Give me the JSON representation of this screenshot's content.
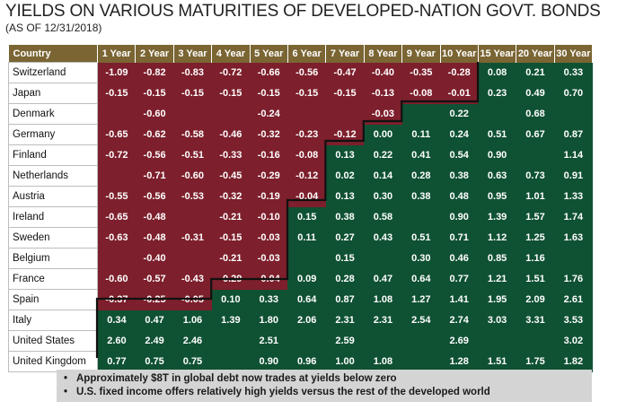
{
  "title": "YIELDS ON VARIOUS MATURITIES OF DEVELOPED-NATION GOVT. BONDS",
  "subtitle": "(AS OF 12/31/2018)",
  "bullets": [
    "Approximately $8T in global debt now trades at yields below zero",
    "U.S. fixed income offers relatively high yields versus the rest of the developed world"
  ],
  "colors": {
    "negative": "#7d1f2c",
    "positive": "#0f5133",
    "header": "#7a6533"
  },
  "chart_data": {
    "type": "table",
    "title": "YIELDS ON VARIOUS MATURITIES OF DEVELOPED-NATION GOVT. BONDS",
    "subtitle": "(AS OF 12/31/2018)",
    "country_header": "Country",
    "columns": [
      "1 Year",
      "2 Year",
      "3 Year",
      "4 Year",
      "5 Year",
      "6 Year",
      "7 Year",
      "8 Year",
      "9 Year",
      "10 Year",
      "15 Year",
      "20 Year",
      "30 Year"
    ],
    "rows": [
      {
        "country": "Switzerland",
        "values": [
          "-1.09",
          "-0.82",
          "-0.83",
          "-0.72",
          "-0.66",
          "-0.56",
          "-0.47",
          "-0.40",
          "-0.35",
          "-0.28",
          "0.08",
          "0.21",
          "0.33"
        ],
        "neg_through": 10
      },
      {
        "country": "Japan",
        "values": [
          "-0.15",
          "-0.15",
          "-0.15",
          "-0.15",
          "-0.15",
          "-0.15",
          "-0.15",
          "-0.13",
          "-0.08",
          "-0.01",
          "0.23",
          "0.49",
          "0.70"
        ],
        "neg_through": 10
      },
      {
        "country": "Denmark",
        "values": [
          "",
          "-0.60",
          "",
          "",
          "-0.24",
          "",
          "",
          "-0.03",
          "",
          "0.22",
          "",
          "0.68",
          ""
        ],
        "neg_through": 8
      },
      {
        "country": "Germany",
        "values": [
          "-0.65",
          "-0.62",
          "-0.58",
          "-0.46",
          "-0.32",
          "-0.23",
          "-0.12",
          "0.00",
          "0.11",
          "0.24",
          "0.51",
          "0.67",
          "0.87"
        ],
        "neg_through": 7
      },
      {
        "country": "Finland",
        "values": [
          "-0.72",
          "-0.56",
          "-0.51",
          "-0.33",
          "-0.16",
          "-0.08",
          "0.13",
          "0.22",
          "0.41",
          "0.54",
          "0.90",
          "",
          "1.14"
        ],
        "neg_through": 6
      },
      {
        "country": "Netherlands",
        "values": [
          "",
          "-0.71",
          "-0.60",
          "-0.45",
          "-0.29",
          "-0.12",
          "0.02",
          "0.14",
          "0.28",
          "0.38",
          "0.63",
          "0.73",
          "0.91"
        ],
        "neg_through": 6
      },
      {
        "country": "Austria",
        "values": [
          "-0.55",
          "-0.56",
          "-0.53",
          "-0.32",
          "-0.19",
          "-0.04",
          "0.13",
          "0.30",
          "0.38",
          "0.48",
          "0.95",
          "1.01",
          "1.33"
        ],
        "neg_through": 6
      },
      {
        "country": "Ireland",
        "values": [
          "-0.65",
          "-0.48",
          "",
          "-0.21",
          "-0.10",
          "0.15",
          "0.38",
          "0.58",
          "",
          "0.90",
          "1.39",
          "1.57",
          "1.74"
        ],
        "neg_through": 5
      },
      {
        "country": "Sweden",
        "values": [
          "-0.63",
          "-0.48",
          "-0.31",
          "-0.15",
          "-0.03",
          "0.11",
          "0.27",
          "0.43",
          "0.51",
          "0.71",
          "1.12",
          "1.25",
          "1.63"
        ],
        "neg_through": 5
      },
      {
        "country": "Belgium",
        "values": [
          "",
          "-0.40",
          "",
          "-0.21",
          "-0.03",
          "",
          "0.15",
          "",
          "0.30",
          "0.46",
          "0.85",
          "1.16",
          ""
        ],
        "neg_through": 5
      },
      {
        "country": "France",
        "values": [
          "-0.60",
          "-0.57",
          "-0.43",
          "-0.29",
          "-0.04",
          "0.09",
          "0.28",
          "0.47",
          "0.64",
          "0.77",
          "1.21",
          "1.51",
          "1.76"
        ],
        "neg_through": 5
      },
      {
        "country": "Spain",
        "values": [
          "-0.37",
          "-0.25",
          "-0.05",
          "0.10",
          "0.33",
          "0.64",
          "0.87",
          "1.08",
          "1.27",
          "1.41",
          "1.95",
          "2.09",
          "2.61"
        ],
        "neg_through": 3
      },
      {
        "country": "Italy",
        "values": [
          "0.34",
          "0.47",
          "1.06",
          "1.39",
          "1.80",
          "2.06",
          "2.31",
          "2.31",
          "2.54",
          "2.74",
          "3.03",
          "3.31",
          "3.53"
        ],
        "neg_through": 0
      },
      {
        "country": "United States",
        "values": [
          "2.60",
          "2.49",
          "2.46",
          "",
          "2.51",
          "",
          "2.59",
          "",
          "",
          "2.69",
          "",
          "",
          "3.02"
        ],
        "neg_through": 0
      },
      {
        "country": "United Kingdom",
        "values": [
          "0.77",
          "0.75",
          "0.75",
          "",
          "0.90",
          "0.96",
          "1.00",
          "1.08",
          "",
          "1.28",
          "1.51",
          "1.75",
          "1.82"
        ],
        "neg_through": 0
      }
    ]
  }
}
